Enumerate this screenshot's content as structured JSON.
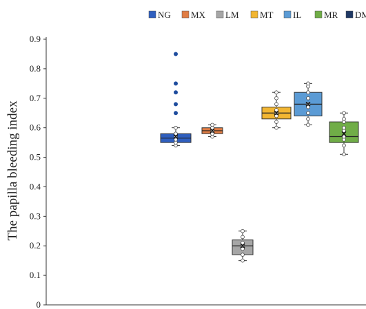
{
  "chart_data": {
    "type": "box",
    "title": "",
    "xlabel": "",
    "ylabel": "The papilla bleeding index",
    "ylim": [
      0,
      0.9
    ],
    "yticks": [
      "0",
      "0.1",
      "0.2",
      "0.3",
      "0.4",
      "0.5",
      "0.6",
      "0.7",
      "0.8",
      "0.9"
    ],
    "grid": false,
    "legend_position": "top",
    "series": [
      {
        "name": "NG",
        "color": "#2f5fbf",
        "min": 0.54,
        "q1": 0.55,
        "median": 0.565,
        "q3": 0.58,
        "max": 0.6,
        "mean": 0.57,
        "points": [
          0.54,
          0.55,
          0.56,
          0.57,
          0.58,
          0.6,
          0.65,
          0.68,
          0.72,
          0.75,
          0.85
        ]
      },
      {
        "name": "MX",
        "color": "#e07d45",
        "min": 0.57,
        "q1": 0.58,
        "median": 0.59,
        "q3": 0.6,
        "max": 0.61,
        "mean": 0.59,
        "points": [
          0.57,
          0.58,
          0.59,
          0.6,
          0.61
        ]
      },
      {
        "name": "LM",
        "color": "#a6a6a6",
        "min": 0.15,
        "q1": 0.17,
        "median": 0.2,
        "q3": 0.22,
        "max": 0.25,
        "mean": 0.2,
        "points": [
          0.15,
          0.17,
          0.19,
          0.2,
          0.21,
          0.23,
          0.25
        ]
      },
      {
        "name": "MT",
        "color": "#f2b632",
        "min": 0.6,
        "q1": 0.63,
        "median": 0.65,
        "q3": 0.67,
        "max": 0.72,
        "mean": 0.65,
        "points": [
          0.6,
          0.62,
          0.64,
          0.65,
          0.66,
          0.68,
          0.7,
          0.72
        ]
      },
      {
        "name": "IL",
        "color": "#5b9bd5",
        "min": 0.61,
        "q1": 0.64,
        "median": 0.68,
        "q3": 0.72,
        "max": 0.75,
        "mean": 0.68,
        "points": [
          0.61,
          0.63,
          0.65,
          0.67,
          0.68,
          0.7,
          0.72,
          0.74,
          0.75
        ]
      },
      {
        "name": "MR",
        "color": "#70ad47",
        "min": 0.51,
        "q1": 0.55,
        "median": 0.57,
        "q3": 0.62,
        "max": 0.65,
        "mean": 0.58,
        "points": [
          0.51,
          0.54,
          0.56,
          0.57,
          0.59,
          0.6,
          0.62,
          0.63,
          0.65
        ]
      },
      {
        "name": "DM",
        "color": "#1f3864"
      }
    ]
  }
}
